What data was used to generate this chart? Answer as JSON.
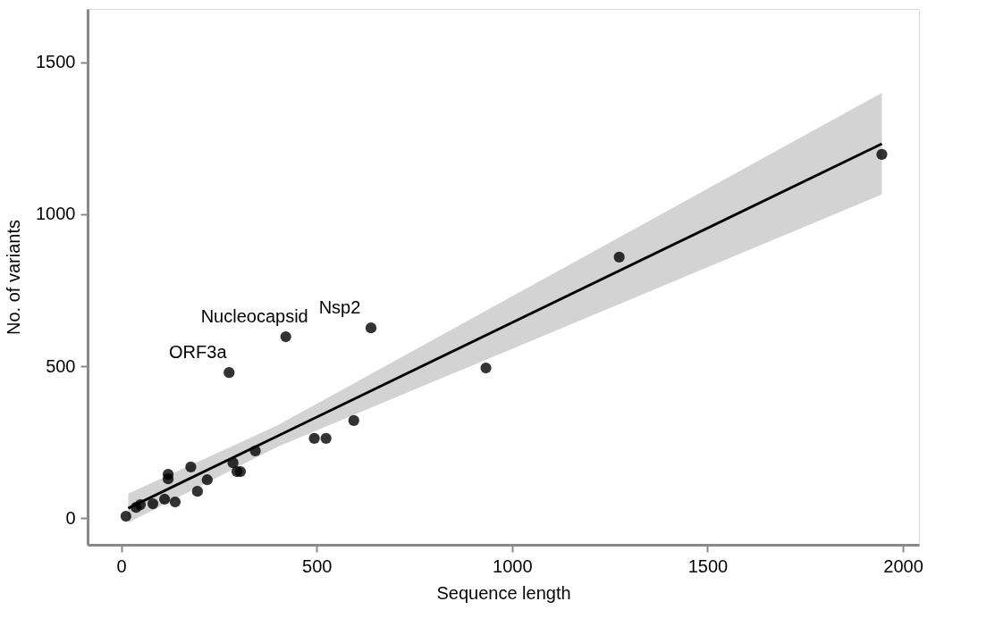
{
  "chart_data": {
    "type": "scatter",
    "xlabel": "Sequence length",
    "ylabel": "No. of variants",
    "xlim": [
      -86,
      2041
    ],
    "ylim": [
      -88,
      1676
    ],
    "xticks": [
      0,
      500,
      1000,
      1500,
      2000
    ],
    "yticks": [
      0,
      500,
      1000,
      1500
    ],
    "grid": false,
    "series": [
      {
        "marker": "circle",
        "color": "#000000",
        "x": [
          12,
          38,
          49,
          81,
          111,
          138,
          120,
          120,
          178,
          195,
          220,
          286,
          296,
          305,
          343,
          494,
          524,
          595,
          276,
          421,
          639,
          933,
          1274,
          1946
        ],
        "values": [
          6,
          35,
          44,
          47,
          62,
          53,
          144,
          129,
          168,
          88,
          126,
          182,
          153,
          153,
          221,
          262,
          262,
          321,
          479,
          597,
          626,
          494,
          859,
          1197
        ]
      },
      {
        "type": "line",
        "marker": "none",
        "line_style": "solid",
        "color": "#000000",
        "x": [
          18,
          400,
          1946
        ],
        "values": [
          32,
          270,
          1232
        ],
        "lower": [
          -15,
          235,
          1065
        ],
        "upper": [
          80,
          305,
          1400
        ]
      }
    ],
    "annotations": [
      {
        "text": "ORF3a",
        "x": 276,
        "y": 479
      },
      {
        "text": "Nucleocapsid",
        "x": 421,
        "y": 597
      },
      {
        "text": "Nsp2",
        "x": 639,
        "y": 626
      }
    ]
  }
}
